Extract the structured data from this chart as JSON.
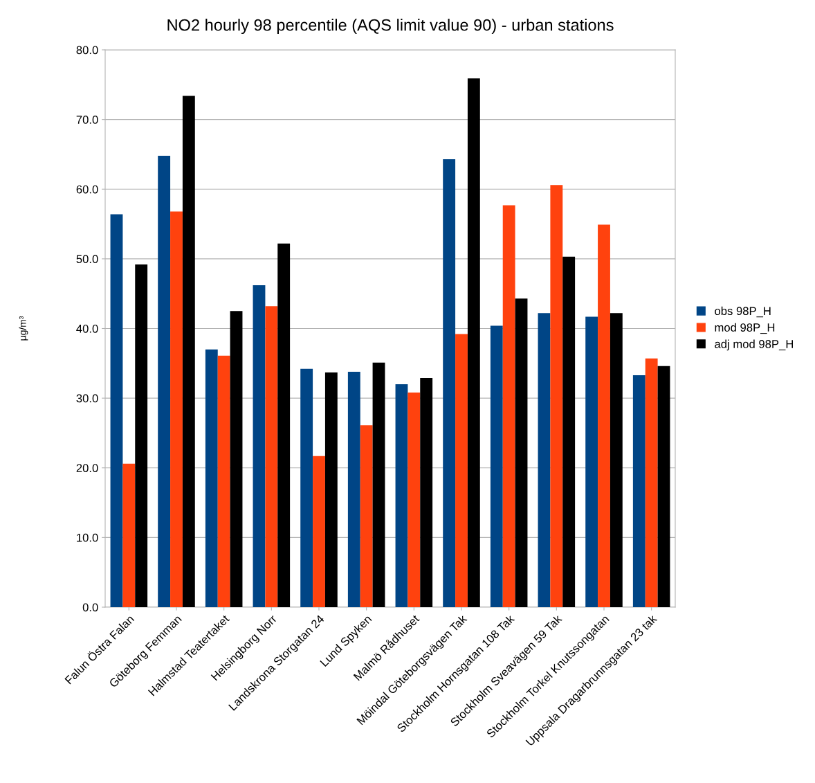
{
  "chart_data": {
    "type": "bar",
    "title": "NO2 hourly 98 percentile (AQS limit value 90) - urban stations",
    "ylabel": "µg/m³",
    "categories": [
      "Falun Östra Falan",
      "Göteborg Femman",
      "Halmstad Teatertaket",
      "Helsingborg Norr",
      "Landskrona Storgatan 24",
      "Lund Spyken",
      "Malmö Rådhuset",
      "Möindal Göteborgsvägen Tak",
      "Stockholm Hornsgatan 108 Tak",
      "Stockholm Sveavägen 59 Tak",
      "Stockholm Torkel Knutssongatan",
      "Uppsala Dragarbrunnsgatan 23 tak"
    ],
    "series": [
      {
        "name": "obs 98P_H",
        "color": "#004586",
        "values": [
          56.4,
          64.8,
          37.0,
          46.2,
          34.2,
          33.8,
          32.0,
          64.3,
          40.4,
          42.2,
          41.7,
          33.3
        ]
      },
      {
        "name": "mod 98P_H",
        "color": "#ff420e",
        "values": [
          20.6,
          56.8,
          36.1,
          43.2,
          21.7,
          26.1,
          30.8,
          39.2,
          57.7,
          60.6,
          54.9,
          35.7
        ]
      },
      {
        "name": "adj mod 98P_H",
        "color": "#000000",
        "values": [
          49.2,
          73.4,
          42.5,
          52.2,
          33.7,
          35.1,
          32.9,
          75.9,
          44.3,
          50.3,
          42.2,
          34.6
        ]
      }
    ],
    "ylim": [
      0,
      80
    ],
    "yticks": [
      {
        "value": 0,
        "label": "0.0"
      },
      {
        "value": 10,
        "label": "10.0"
      },
      {
        "value": 20,
        "label": "20.0"
      },
      {
        "value": 30,
        "label": "30.0"
      },
      {
        "value": 40,
        "label": "40.0"
      },
      {
        "value": 50,
        "label": "50.0"
      },
      {
        "value": 60,
        "label": "60.0"
      },
      {
        "value": 70,
        "label": "70.0"
      },
      {
        "value": 80,
        "label": "80.0"
      }
    ],
    "grid": "y",
    "legend": "right"
  }
}
